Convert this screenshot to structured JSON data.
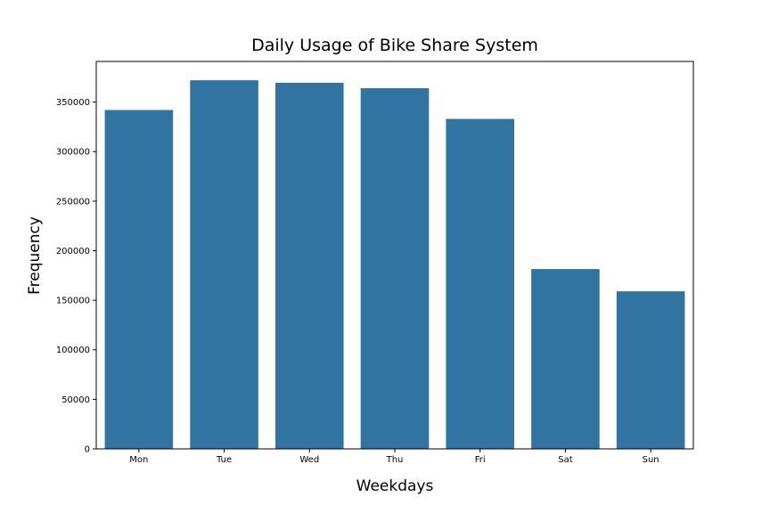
{
  "chart_data": {
    "type": "bar",
    "title": "Daily Usage of Bike Share System",
    "xlabel": "Weekdays",
    "ylabel": "Frequency",
    "categories": [
      "Mon",
      "Tue",
      "Wed",
      "Thu",
      "Fri",
      "Sat",
      "Sun"
    ],
    "values": [
      342000,
      372000,
      369500,
      364000,
      333000,
      181500,
      159000
    ],
    "ylim": [
      0,
      391000
    ],
    "yticks": [
      0,
      50000,
      100000,
      150000,
      200000,
      250000,
      300000,
      350000
    ],
    "ytick_labels": [
      "0",
      "50000",
      "100000",
      "150000",
      "200000",
      "250000",
      "300000",
      "350000"
    ],
    "bar_color": "#3274a1",
    "grid": false
  }
}
